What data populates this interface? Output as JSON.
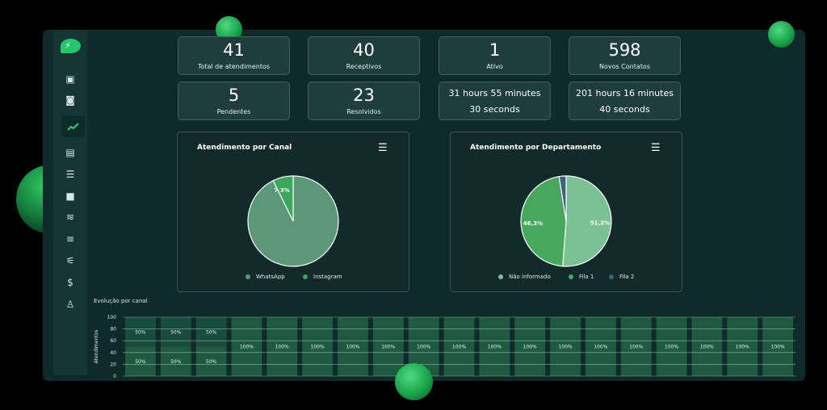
{
  "colors": {
    "accent": "#25c76a",
    "whatsapp": "#5a9877",
    "instagram": "#3aa75d",
    "nao_informado": "#7cc193",
    "fila1": "#45a85c",
    "fila2": "#41617a"
  },
  "sidebar": {
    "items": [
      {
        "icon": "chat-icon",
        "glyph": "▣"
      },
      {
        "icon": "contacts-icon",
        "glyph": "◙"
      },
      {
        "icon": "dashboard-icon",
        "glyph": "📈",
        "active": true
      },
      {
        "icon": "kanban-icon",
        "glyph": "▤"
      },
      {
        "icon": "tasks-icon",
        "glyph": "☰"
      },
      {
        "icon": "briefcase-icon",
        "glyph": "■"
      },
      {
        "icon": "connections-icon",
        "glyph": "≋"
      },
      {
        "icon": "queues-icon",
        "glyph": "≡"
      },
      {
        "icon": "settings-sliders-icon",
        "glyph": "⚟"
      },
      {
        "icon": "finance-icon",
        "glyph": "$"
      },
      {
        "icon": "org-chart-icon",
        "glyph": "♙"
      }
    ]
  },
  "stats": [
    {
      "value": "41",
      "label": "Total de atendimentos"
    },
    {
      "value": "40",
      "label": "Receptivos"
    },
    {
      "value": "1",
      "label": "Ativo"
    },
    {
      "value": "598",
      "label": "Novos Contatos"
    },
    {
      "value": "5",
      "label": "Pendentes"
    },
    {
      "value": "23",
      "label": "Resolvidos"
    },
    {
      "line1": "31 hours 55 minutes",
      "line2": "30 seconds"
    },
    {
      "line1": "201 hours 16 minutes",
      "line2": "40 seconds"
    }
  ],
  "chart_data": [
    {
      "type": "pie",
      "title": "Atendimento por Canal",
      "categories": [
        "WhatsApp",
        "Instagram"
      ],
      "values": [
        92.7,
        7.3
      ],
      "data_labels": [
        "",
        "7,3%"
      ],
      "legend_position": "bottom"
    },
    {
      "type": "pie",
      "title": "Atendimento por Departamento",
      "categories": [
        "Não informado",
        "Fila 1",
        "Fila 2"
      ],
      "values": [
        51.2,
        46.3,
        2.5
      ],
      "data_labels": [
        "51,2%",
        "46,3%",
        ""
      ],
      "legend_position": "bottom"
    },
    {
      "type": "bar",
      "title": "Evolução por canal",
      "ylabel": "Atendimentos",
      "ylim": [
        0,
        100
      ],
      "yticks": [
        0,
        20,
        40,
        60,
        80,
        100
      ],
      "stacked": true,
      "grid": true,
      "bars": 19,
      "series": [
        {
          "values": [
            50,
            50,
            50,
            100,
            100,
            100,
            100,
            100,
            100,
            100,
            100,
            100,
            100,
            100,
            100,
            100,
            100,
            100,
            100
          ],
          "labels": [
            "50%",
            "50%",
            "50%",
            "100%",
            "100%",
            "100%",
            "100%",
            "100%",
            "100%",
            "100%",
            "100%",
            "100%",
            "100%",
            "100%",
            "100%",
            "100%",
            "100%",
            "100%",
            "100%"
          ]
        },
        {
          "values": [
            50,
            50,
            50,
            0,
            0,
            0,
            0,
            0,
            0,
            0,
            0,
            0,
            0,
            0,
            0,
            0,
            0,
            0,
            0
          ],
          "labels": [
            "50%",
            "50%",
            "50%",
            "",
            "",
            "",
            "",
            "",
            "",
            "",
            "",
            "",
            "",
            "",
            "",
            "",
            "",
            "",
            ""
          ]
        }
      ]
    }
  ]
}
